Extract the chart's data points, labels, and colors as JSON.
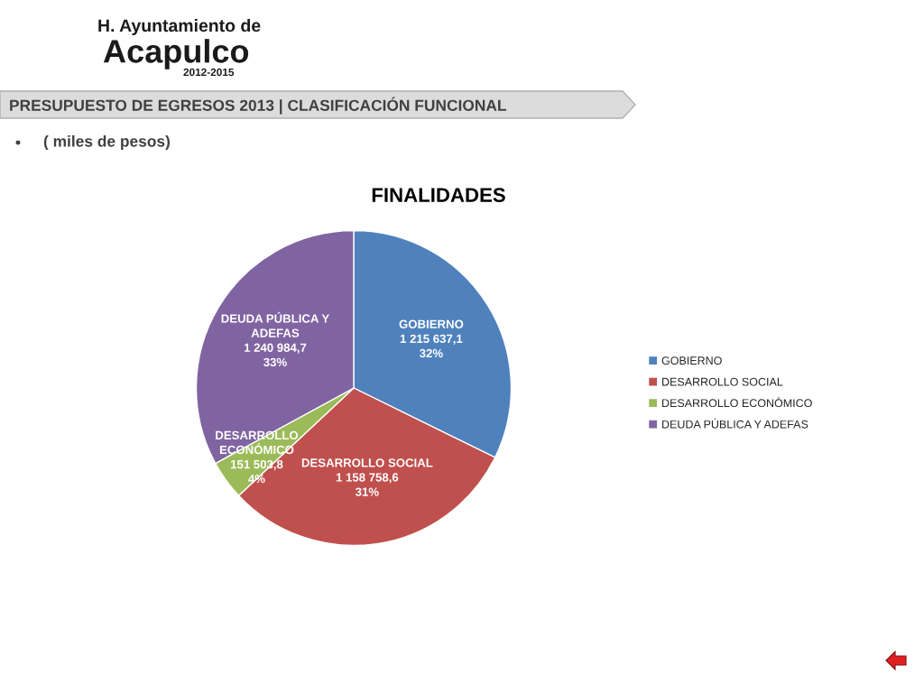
{
  "chart_data": {
    "type": "pie",
    "title": "FINALIDADES",
    "subtitle": "( miles de pesos)",
    "categories": [
      "GOBIERNO",
      "DESARROLLO SOCIAL",
      "DESARROLLO ECONÓMICO",
      "DEUDA PÚBLICA Y ADEFAS"
    ],
    "values": [
      1215637.1,
      1158758.6,
      151503.8,
      1240984.7
    ],
    "colors": [
      "#4f81bd",
      "#c0504d",
      "#9bbb59",
      "#8064a2"
    ],
    "value_labels": [
      "1 215 637,1\n32%",
      "1 158 758,6\n31%",
      "151 503,8\n4%",
      "1 240 984,7\n33%"
    ],
    "legend": "right",
    "annotations": [
      "PRESUPUESTO DE EGRESOS 2013 | CLASIFICACIÓN FUNCIONAL",
      "H. Ayuntamiento de",
      "Acapulco",
      "2012-2015"
    ]
  }
}
